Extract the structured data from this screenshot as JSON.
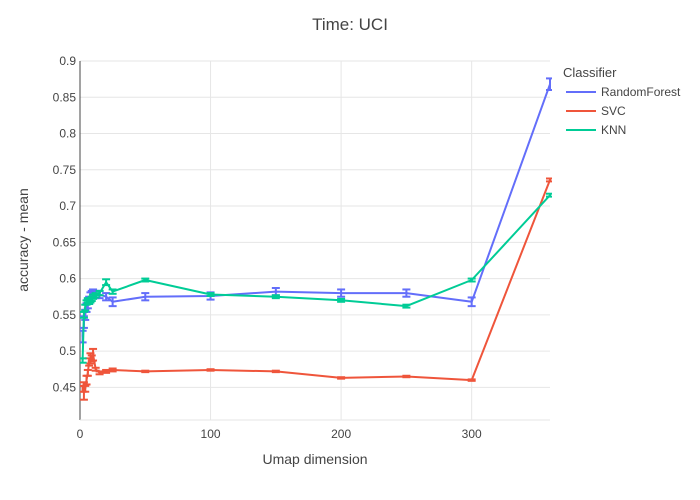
{
  "chart_data": {
    "type": "line",
    "title": "Time: UCI",
    "xlabel": "Umap dimension",
    "ylabel": "accuracy - mean",
    "xlim": [
      0,
      360
    ],
    "ylim": [
      0.405,
      0.9
    ],
    "x_ticks": [
      0,
      100,
      200,
      300
    ],
    "y_ticks": [
      0.45,
      0.5,
      0.55,
      0.6,
      0.65,
      0.7,
      0.75,
      0.8,
      0.85,
      0.9
    ],
    "grid": true,
    "legend": {
      "title": "Classifier",
      "position": "top-right"
    },
    "series": [
      {
        "name": "RandomForest",
        "color": "#636efa",
        "x": [
          2,
          3,
          4,
          5,
          6,
          7,
          8,
          9,
          10,
          12,
          15,
          20,
          25,
          50,
          100,
          150,
          200,
          250,
          300,
          360
        ],
        "y": [
          0.52,
          0.54,
          0.55,
          0.56,
          0.565,
          0.57,
          0.575,
          0.578,
          0.58,
          0.578,
          0.578,
          0.575,
          0.568,
          0.575,
          0.576,
          0.582,
          0.58,
          0.58,
          0.568,
          0.868
        ],
        "error": [
          0.008,
          0.008,
          0.007,
          0.006,
          0.006,
          0.005,
          0.006,
          0.005,
          0.005,
          0.005,
          0.005,
          0.005,
          0.006,
          0.005,
          0.005,
          0.005,
          0.005,
          0.005,
          0.006,
          0.008
        ]
      },
      {
        "name": "SVC",
        "color": "#ef553b",
        "x": [
          2,
          3,
          4,
          5,
          6,
          7,
          8,
          9,
          10,
          12,
          15,
          20,
          25,
          50,
          100,
          150,
          200,
          250,
          300,
          360
        ],
        "y": [
          0.448,
          0.445,
          0.448,
          0.46,
          0.47,
          0.485,
          0.49,
          0.49,
          0.495,
          0.475,
          0.47,
          0.472,
          0.474,
          0.472,
          0.474,
          0.472,
          0.463,
          0.465,
          0.46,
          0.736
        ],
        "error": [
          0.004,
          0.012,
          0.004,
          0.006,
          0.004,
          0.005,
          0.007,
          0.004,
          0.008,
          0.002,
          0.002,
          0.002,
          0.002,
          0.001,
          0.001,
          0.001,
          0.001,
          0.001,
          0.001,
          0.002
        ]
      },
      {
        "name": "KNN",
        "color": "#00cc96",
        "x": [
          2,
          3,
          4,
          5,
          6,
          7,
          8,
          9,
          10,
          12,
          15,
          20,
          25,
          50,
          100,
          150,
          200,
          250,
          300,
          360
        ],
        "y": [
          0.487,
          0.55,
          0.56,
          0.567,
          0.57,
          0.568,
          0.57,
          0.572,
          0.575,
          0.577,
          0.58,
          0.595,
          0.582,
          0.598,
          0.578,
          0.575,
          0.57,
          0.562,
          0.598,
          0.715
        ],
        "error": [
          0.003,
          0.004,
          0.004,
          0.003,
          0.003,
          0.003,
          0.003,
          0.003,
          0.003,
          0.003,
          0.003,
          0.004,
          0.003,
          0.002,
          0.002,
          0.002,
          0.002,
          0.002,
          0.002,
          0.002
        ]
      }
    ]
  }
}
